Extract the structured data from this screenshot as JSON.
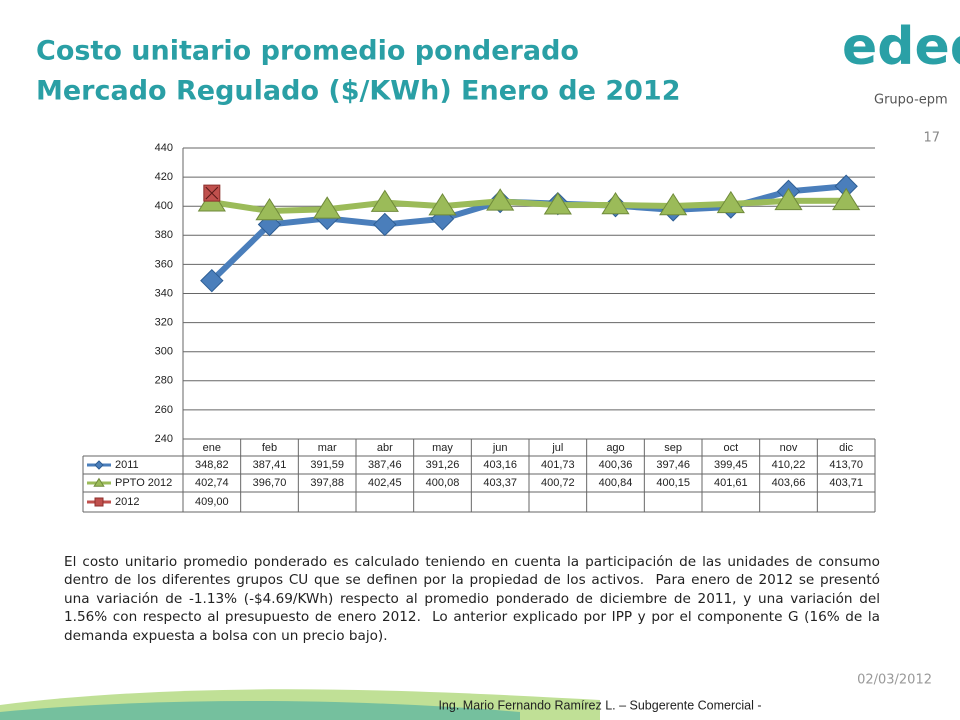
{
  "header": {
    "title_line1": "Costo unitario promedio ponderado",
    "title_line2": "Mercado Regulado ($/KWh)  Enero de 2012",
    "logo": "edeq",
    "logo_group": "Grupo-epm",
    "page_number": "17"
  },
  "chart_data": {
    "type": "line",
    "categories": [
      "ene",
      "feb",
      "mar",
      "abr",
      "may",
      "jun",
      "jul",
      "ago",
      "sep",
      "oct",
      "nov",
      "dic"
    ],
    "series": [
      {
        "name": "2011",
        "color": "#4a7ebb",
        "marker": "diamond",
        "values": [
          348.82,
          387.41,
          391.59,
          387.46,
          391.26,
          403.16,
          401.73,
          400.36,
          397.46,
          399.45,
          410.22,
          413.7
        ],
        "value_labels": [
          "348,82",
          "387,41",
          "391,59",
          "387,46",
          "391,26",
          "403,16",
          "401,73",
          "400,36",
          "397,46",
          "399,45",
          "410,22",
          "413,70"
        ]
      },
      {
        "name": "PPTO 2012",
        "color": "#9bbb59",
        "marker": "triangle",
        "values": [
          402.74,
          396.7,
          397.88,
          402.45,
          400.08,
          403.37,
          400.72,
          400.84,
          400.15,
          401.61,
          403.66,
          403.71
        ],
        "value_labels": [
          "402,74",
          "396,70",
          "397,88",
          "402,45",
          "400,08",
          "403,37",
          "400,72",
          "400,84",
          "400,15",
          "401,61",
          "403,66",
          "403,71"
        ]
      },
      {
        "name": "2012",
        "color": "#c0504d",
        "marker": "square",
        "values": [
          409.0,
          null,
          null,
          null,
          null,
          null,
          null,
          null,
          null,
          null,
          null,
          null
        ],
        "value_labels": [
          "409,00",
          null,
          null,
          null,
          null,
          null,
          null,
          null,
          null,
          null,
          null,
          null
        ]
      }
    ],
    "ylim": [
      240,
      440
    ],
    "yticks": [
      240,
      260,
      280,
      300,
      320,
      340,
      360,
      380,
      400,
      420,
      440
    ],
    "grid": true
  },
  "body": {
    "paragraph": "El costo unitario promedio ponderado es calculado teniendo en cuenta la participación de las unidades de consumo dentro de los diferentes grupos CU que se definen por la propiedad de los activos.  Para enero de 2012 se presentó una variación de -1.13% (-$4.69/KWh) respecto al promedio ponderado de diciembre de 2011, y una variación del 1.56% con respecto al presupuesto de enero 2012.  Lo anterior explicado por IPP y por el componente G (16% de la demanda expuesta a bolsa con un precio bajo)."
  },
  "footer": {
    "date": "02/03/2012",
    "author": "Ing. Mario Fernando Ramírez L. – Subgerente Comercial -"
  }
}
